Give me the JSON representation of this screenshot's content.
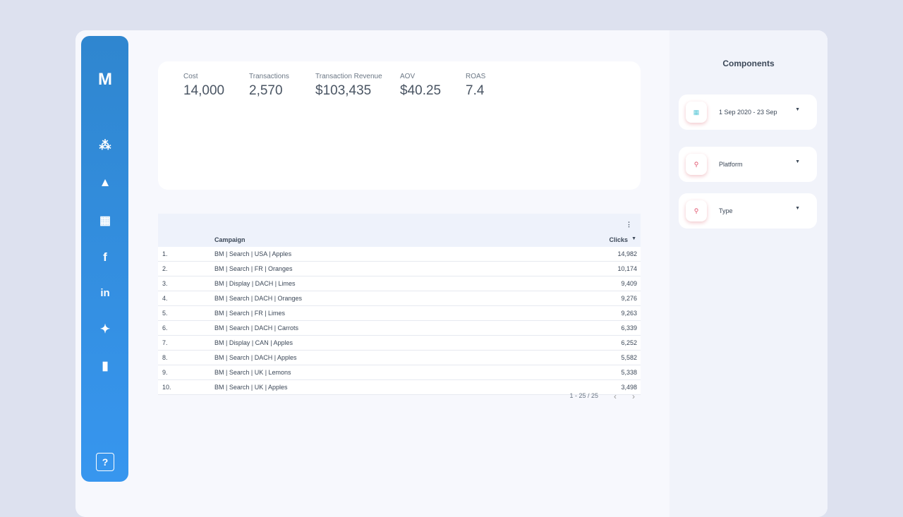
{
  "kpis": [
    {
      "label": "Cost",
      "value": "14,000"
    },
    {
      "label": "Transactions",
      "value": "2,570"
    },
    {
      "label": "Transaction Revenue",
      "value": "$103,435"
    },
    {
      "label": "AOV",
      "value": "$40.25"
    },
    {
      "label": "ROAS",
      "value": "7.4"
    }
  ],
  "table": {
    "headers": [
      "Campaign",
      "Clicks"
    ],
    "rows": [
      [
        "1.",
        "BM | Search | USA | Apples",
        "14,982"
      ],
      [
        "2.",
        "BM | Search | FR | Oranges",
        "10,174"
      ],
      [
        "3.",
        "BM | Display | DACH | Limes",
        "9,409"
      ],
      [
        "4.",
        "BM | Search | DACH | Oranges",
        "9,276"
      ],
      [
        "5.",
        "BM | Search | FR | Limes",
        "9,263"
      ],
      [
        "6.",
        "BM | Search | DACH | Carrots",
        "6,339"
      ],
      [
        "7.",
        "BM | Display | CAN | Apples",
        "6,252"
      ],
      [
        "8.",
        "BM | Search | DACH | Apples",
        "5,582"
      ],
      [
        "9.",
        "BM | Search | UK | Lemons",
        "5,338"
      ],
      [
        "10.",
        "BM | Search | UK | Apples",
        "3,498"
      ]
    ],
    "pagination": "1 - 25 / 25"
  },
  "panel": {
    "title": "Components",
    "controls": [
      "1 Sep 2020 - 23 Sep",
      "Platform",
      "Type"
    ]
  }
}
